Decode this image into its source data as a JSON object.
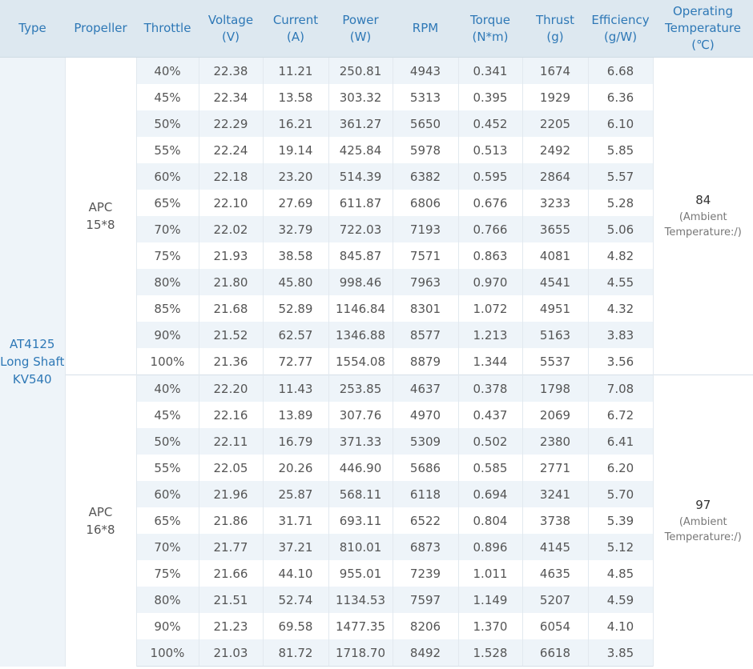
{
  "headers": [
    "Type",
    "Propeller",
    "Throttle",
    "Voltage\n(V)",
    "Current\n(A)",
    "Power\n(W)",
    "RPM",
    "Torque\n(N*m)",
    "Thrust\n(g)",
    "Efficiency\n(g/W)",
    "Operating\nTemperature\n(℃)"
  ],
  "motor_type": "AT4125\nLong Shaft\nKV540",
  "groups": [
    {
      "propeller": "APC\n15*8",
      "temperature": "84",
      "temperature_note": "(Ambient\nTemperature:/)",
      "rows": [
        [
          "40%",
          "22.38",
          "11.21",
          "250.81",
          "4943",
          "0.341",
          "1674",
          "6.68"
        ],
        [
          "45%",
          "22.34",
          "13.58",
          "303.32",
          "5313",
          "0.395",
          "1929",
          "6.36"
        ],
        [
          "50%",
          "22.29",
          "16.21",
          "361.27",
          "5650",
          "0.452",
          "2205",
          "6.10"
        ],
        [
          "55%",
          "22.24",
          "19.14",
          "425.84",
          "5978",
          "0.513",
          "2492",
          "5.85"
        ],
        [
          "60%",
          "22.18",
          "23.20",
          "514.39",
          "6382",
          "0.595",
          "2864",
          "5.57"
        ],
        [
          "65%",
          "22.10",
          "27.69",
          "611.87",
          "6806",
          "0.676",
          "3233",
          "5.28"
        ],
        [
          "70%",
          "22.02",
          "32.79",
          "722.03",
          "7193",
          "0.766",
          "3655",
          "5.06"
        ],
        [
          "75%",
          "21.93",
          "38.58",
          "845.87",
          "7571",
          "0.863",
          "4081",
          "4.82"
        ],
        [
          "80%",
          "21.80",
          "45.80",
          "998.46",
          "7963",
          "0.970",
          "4541",
          "4.55"
        ],
        [
          "85%",
          "21.68",
          "52.89",
          "1146.84",
          "8301",
          "1.072",
          "4951",
          "4.32"
        ],
        [
          "90%",
          "21.52",
          "62.57",
          "1346.88",
          "8577",
          "1.213",
          "5163",
          "3.83"
        ],
        [
          "100%",
          "21.36",
          "72.77",
          "1554.08",
          "8879",
          "1.344",
          "5537",
          "3.56"
        ]
      ]
    },
    {
      "propeller": "APC\n16*8",
      "temperature": "97",
      "temperature_note": "(Ambient\nTemperature:/)",
      "rows": [
        [
          "40%",
          "22.20",
          "11.43",
          "253.85",
          "4637",
          "0.378",
          "1798",
          "7.08"
        ],
        [
          "45%",
          "22.16",
          "13.89",
          "307.76",
          "4970",
          "0.437",
          "2069",
          "6.72"
        ],
        [
          "50%",
          "22.11",
          "16.79",
          "371.33",
          "5309",
          "0.502",
          "2380",
          "6.41"
        ],
        [
          "55%",
          "22.05",
          "20.26",
          "446.90",
          "5686",
          "0.585",
          "2771",
          "6.20"
        ],
        [
          "60%",
          "21.96",
          "25.87",
          "568.11",
          "6118",
          "0.694",
          "3241",
          "5.70"
        ],
        [
          "65%",
          "21.86",
          "31.71",
          "693.11",
          "6522",
          "0.804",
          "3738",
          "5.39"
        ],
        [
          "70%",
          "21.77",
          "37.21",
          "810.01",
          "6873",
          "0.896",
          "4145",
          "5.12"
        ],
        [
          "75%",
          "21.66",
          "44.10",
          "955.01",
          "7239",
          "1.011",
          "4635",
          "4.85"
        ],
        [
          "80%",
          "21.51",
          "52.74",
          "1134.53",
          "7597",
          "1.149",
          "5207",
          "4.59"
        ],
        [
          "90%",
          "21.23",
          "69.58",
          "1477.35",
          "8206",
          "1.370",
          "6054",
          "4.10"
        ],
        [
          "100%",
          "21.03",
          "81.72",
          "1718.70",
          "8492",
          "1.528",
          "6618",
          "3.85"
        ]
      ]
    }
  ]
}
